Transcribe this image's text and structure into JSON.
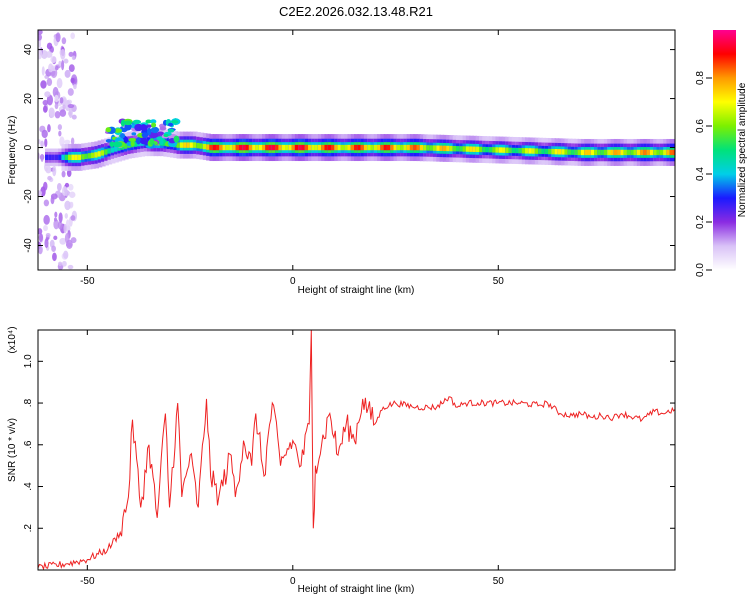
{
  "title": "C2E2.2026.032.13.48.R21",
  "chart_data": [
    {
      "type": "heatmap",
      "xlabel": "Height of straight line (km)",
      "ylabel": "Frequency (Hz)",
      "xlim": [
        -62,
        93
      ],
      "ylim": [
        -50,
        48
      ],
      "xticks": [
        -50,
        0,
        50
      ],
      "yticks": [
        -40,
        -20,
        0,
        20,
        40
      ],
      "colorbar": {
        "label": "Normalized spectral amplitude",
        "ticks": [
          "0.0",
          "0.2",
          "0.4",
          "0.6",
          "0.8"
        ],
        "tick_values": [
          0.0,
          0.2,
          0.4,
          0.6,
          0.8
        ],
        "range": [
          0,
          1
        ],
        "colormap": [
          "#ffffff",
          "#d9c2f7",
          "#8a2be2",
          "#1a1aff",
          "#00cfe8",
          "#00e27a",
          "#7cf000",
          "#ffff00",
          "#ff9a00",
          "#ff0000",
          "#ff0090"
        ]
      },
      "ridge": {
        "x": [
          -60,
          -57,
          -52,
          -48,
          -44,
          -40,
          -36,
          -32,
          -28,
          -24,
          -20,
          -15,
          -10,
          -5,
          0,
          5,
          10,
          15,
          20,
          25,
          30,
          40,
          50,
          60,
          70,
          80,
          93
        ],
        "freq": [
          -4,
          -4,
          -4,
          -3,
          -1,
          1,
          2,
          2,
          1,
          1,
          0,
          0,
          0,
          0,
          0,
          0,
          0,
          0,
          0,
          0,
          0,
          -0.5,
          -1,
          -1.5,
          -2,
          -2,
          -2
        ],
        "amplitude": [
          0.3,
          0.4,
          0.85,
          0.7,
          0.6,
          0.55,
          0.6,
          0.65,
          0.7,
          0.8,
          0.9,
          0.95,
          0.95,
          0.95,
          0.95,
          0.95,
          0.9,
          0.9,
          0.9,
          0.9,
          0.85,
          0.75,
          0.7,
          0.7,
          0.75,
          0.8,
          0.85
        ]
      },
      "blob": {
        "x": [
          -45,
          -28
        ],
        "freq": [
          1,
          11
        ],
        "amplitude": 0.6
      }
    },
    {
      "type": "line",
      "xlabel": "Height of straight line (km)",
      "ylabel": "SNR (10 * v/v)",
      "y_multiplier": "(x10⁴)",
      "xlim": [
        -62,
        93
      ],
      "ylim": [
        0,
        1.15
      ],
      "xticks": [
        -50,
        0,
        50
      ],
      "yticks": [
        0.2,
        0.4,
        0.6,
        0.8,
        1.0
      ],
      "series": [
        {
          "color": "#ee2222",
          "x": [
            -62,
            -55,
            -50,
            -45,
            -42,
            -40,
            -39,
            -37,
            -35,
            -33,
            -31,
            -30,
            -28,
            -27,
            -25,
            -23,
            -21,
            -20,
            -18,
            -15,
            -14,
            -12,
            -10,
            -9,
            -7,
            -5,
            -3,
            -2,
            0,
            2,
            4,
            4.5,
            5,
            5.5,
            7,
            9,
            11,
            13,
            15,
            17,
            20,
            22,
            25,
            30,
            35,
            38,
            40,
            42,
            45,
            50,
            55,
            60,
            62,
            65,
            68,
            70,
            73,
            75,
            78,
            80,
            85,
            88,
            90,
            93
          ],
          "y": [
            0.01,
            0.03,
            0.05,
            0.1,
            0.18,
            0.35,
            0.72,
            0.3,
            0.6,
            0.25,
            0.75,
            0.3,
            0.8,
            0.35,
            0.55,
            0.3,
            0.82,
            0.45,
            0.35,
            0.55,
            0.35,
            0.62,
            0.5,
            0.75,
            0.45,
            0.8,
            0.5,
            0.55,
            0.62,
            0.5,
            0.7,
            1.15,
            0.2,
            0.5,
            0.6,
            0.75,
            0.55,
            0.7,
            0.62,
            0.82,
            0.7,
            0.78,
            0.8,
            0.78,
            0.78,
            0.83,
            0.78,
            0.8,
            0.8,
            0.8,
            0.8,
            0.79,
            0.8,
            0.75,
            0.74,
            0.75,
            0.73,
            0.74,
            0.73,
            0.75,
            0.72,
            0.76,
            0.75,
            0.77
          ]
        }
      ]
    }
  ]
}
